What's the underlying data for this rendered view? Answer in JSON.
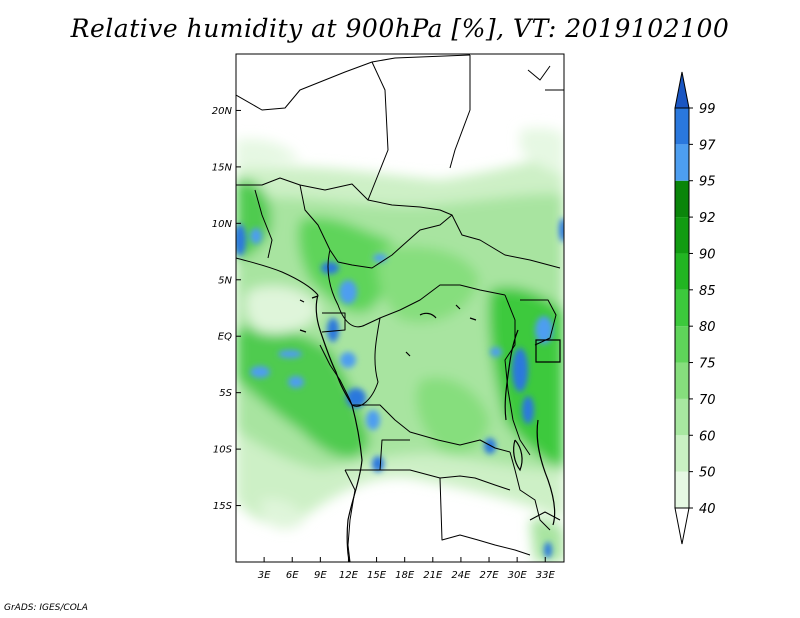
{
  "title": "Relative humidity at 900hPa [%], VT: 2019102100",
  "credit": "GrADS: IGES/COLA",
  "lat_ticks": [
    "20N",
    "15N",
    "10N",
    "5N",
    "EQ",
    "5S",
    "10S",
    "15S"
  ],
  "lon_ticks": [
    "3E",
    "6E",
    "9E",
    "12E",
    "15E",
    "18E",
    "21E",
    "24E",
    "27E",
    "30E",
    "33E"
  ],
  "colorbar": {
    "levels": [
      "40",
      "50",
      "60",
      "70",
      "75",
      "80",
      "85",
      "90",
      "92",
      "95",
      "97",
      "99"
    ],
    "colors": [
      "#ffffff",
      "#e6f8e3",
      "#c9f0c3",
      "#a8e7a1",
      "#86de7d",
      "#5fd45a",
      "#3cc93c",
      "#22b522",
      "#119b11",
      "#0a850a",
      "#4d9ef0",
      "#2a78dd",
      "#1a56c2"
    ]
  },
  "map_extent": {
    "lon": [
      0,
      35
    ],
    "lat": [
      -20,
      25
    ]
  }
}
